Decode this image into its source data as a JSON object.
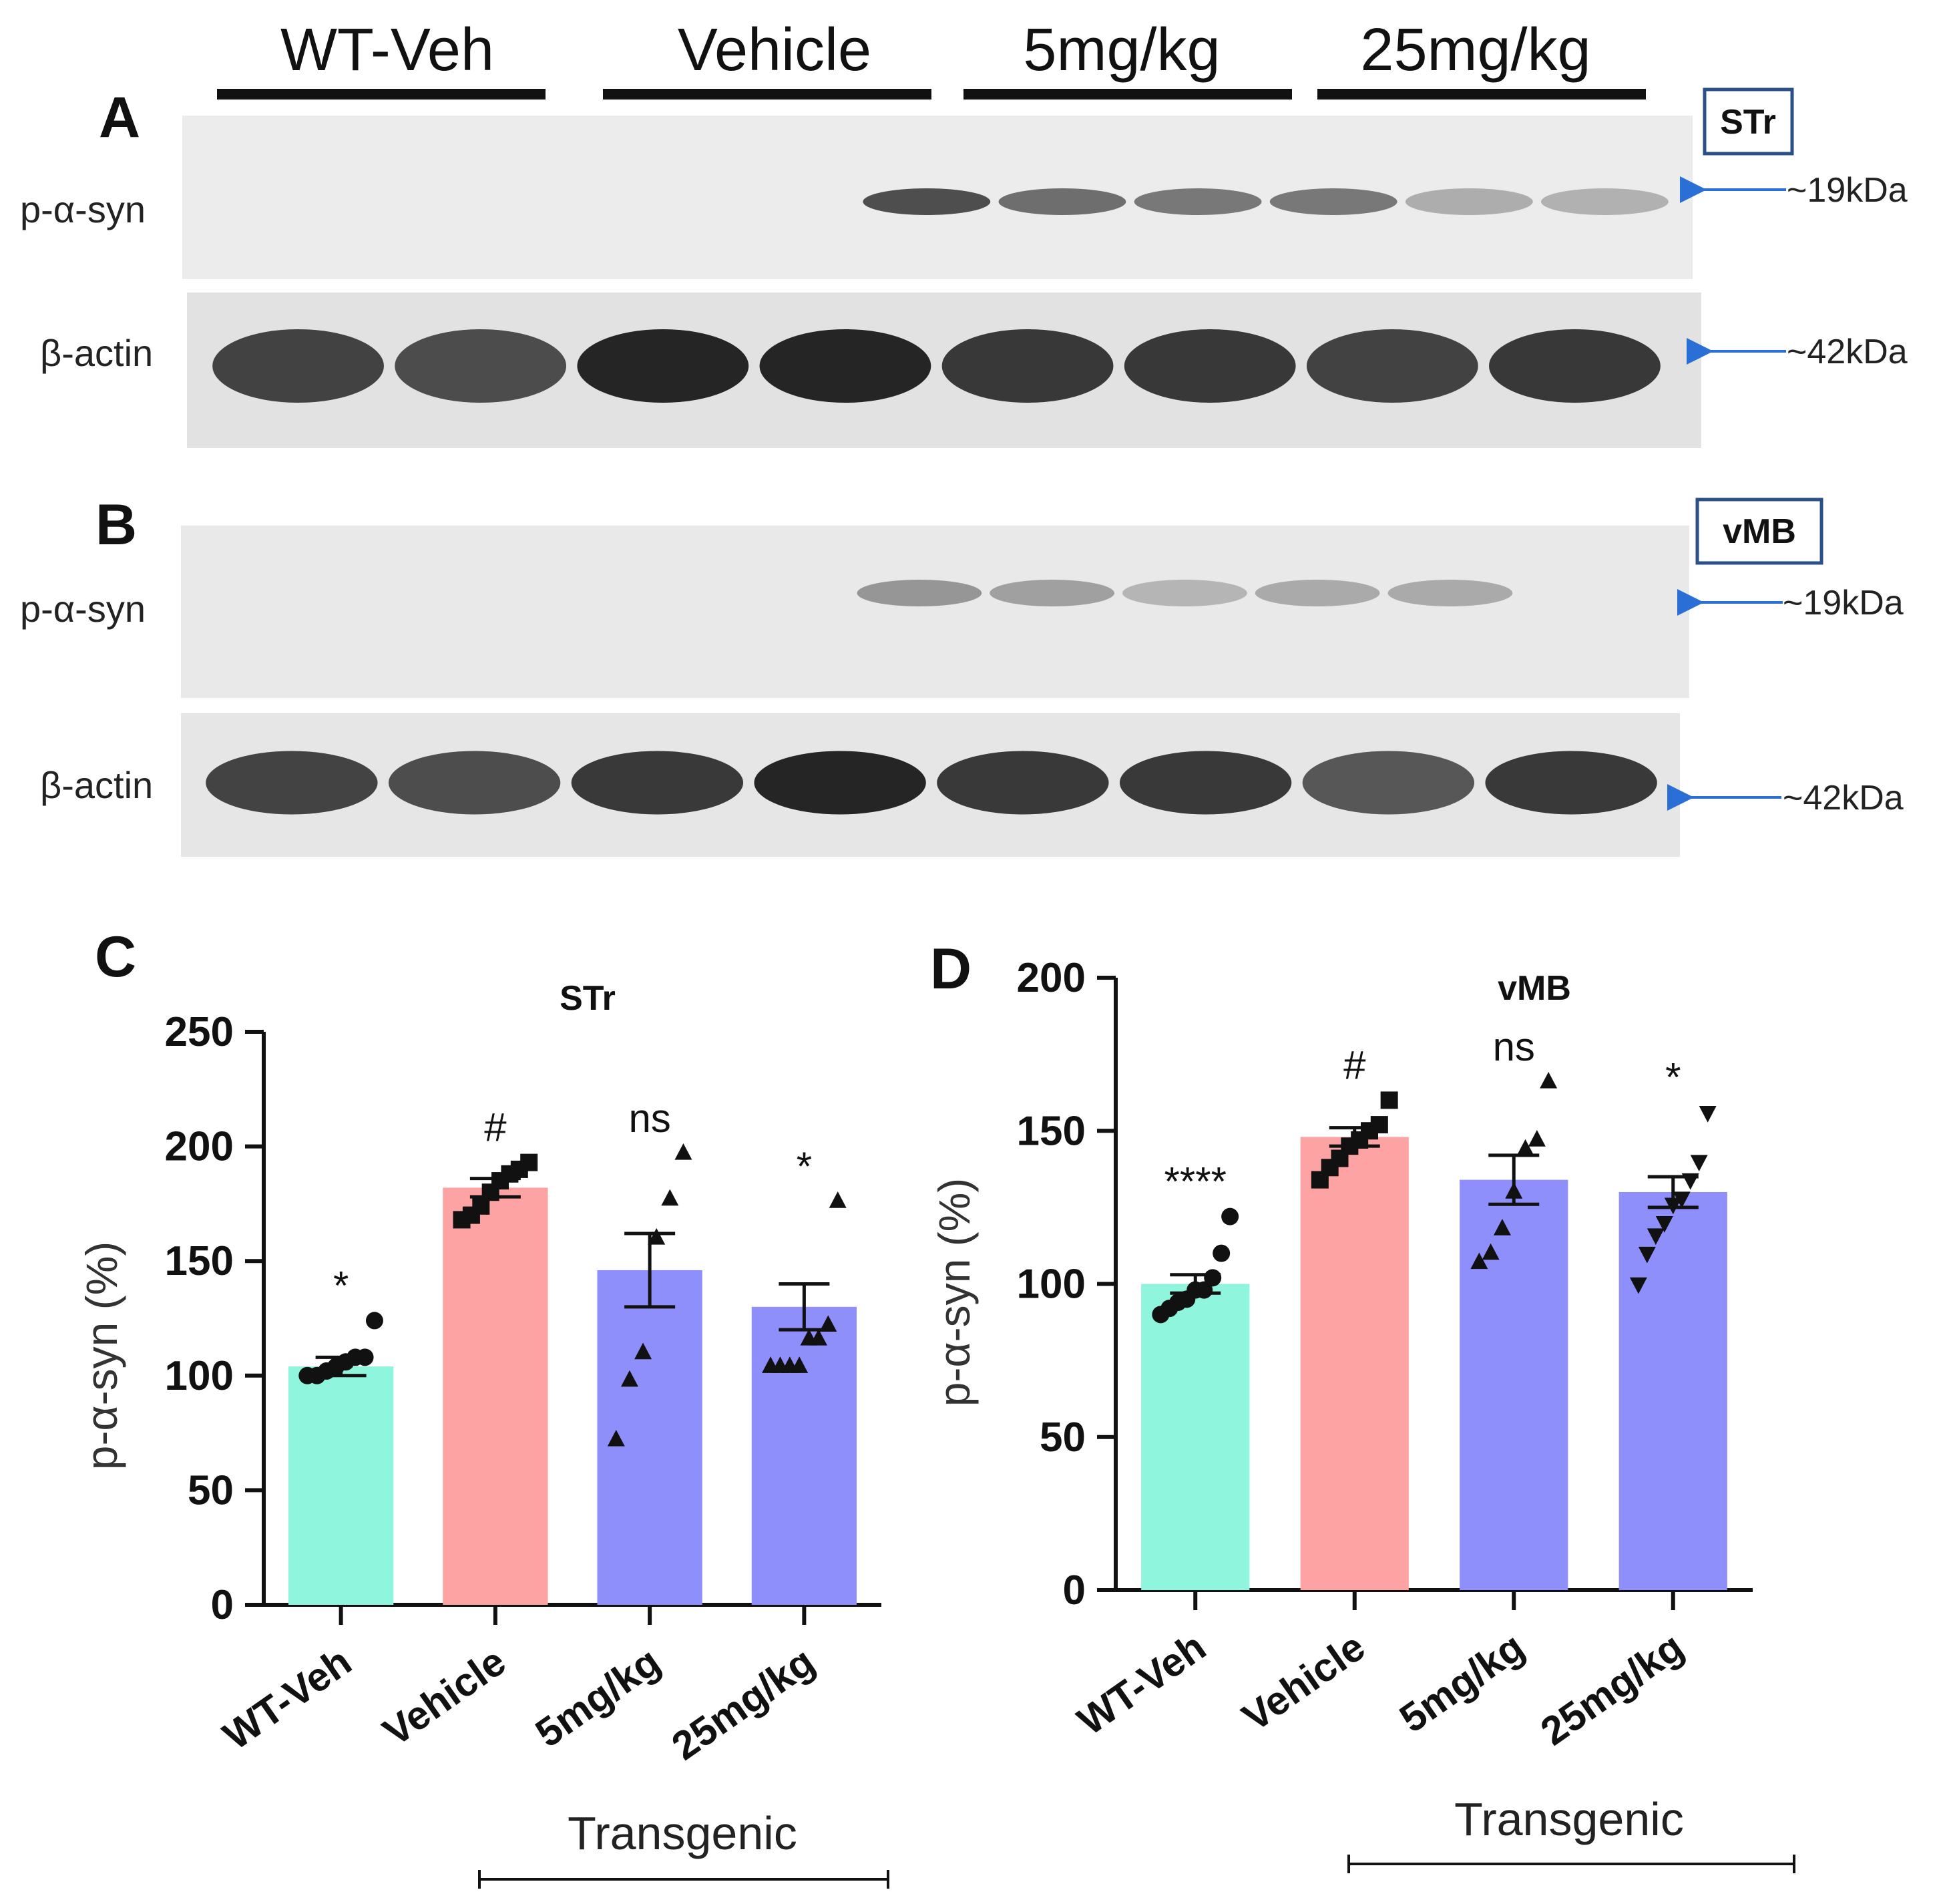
{
  "blots": {
    "header_groups": [
      "WT-Veh",
      "Vehicle",
      "5mg/kg",
      "25mg/kg"
    ],
    "panel_a": {
      "letter": "A",
      "region": "STr",
      "rows": [
        {
          "label": "p-α-syn",
          "kda": "~19kDa",
          "band_intensities": [
            0.03,
            0.04,
            0.75,
            0.6,
            0.55,
            0.55,
            0.3,
            0.28
          ]
        },
        {
          "label": "β-actin",
          "kda": "~42kDa",
          "band_intensities": [
            0.8,
            0.75,
            0.95,
            0.95,
            0.85,
            0.85,
            0.8,
            0.85
          ]
        }
      ]
    },
    "panel_b": {
      "letter": "B",
      "region": "vMB",
      "rows": [
        {
          "label": "p-α-syn",
          "kda": "~19kDa",
          "band_intensities": [
            0.05,
            0.05,
            0.4,
            0.35,
            0.25,
            0.3,
            0.3,
            0.05
          ]
        },
        {
          "label": "β-actin",
          "kda": "~42kDa",
          "band_intensities": [
            0.8,
            0.75,
            0.85,
            0.95,
            0.85,
            0.85,
            0.7,
            0.85
          ]
        }
      ]
    },
    "band_color": "#1a1a1a",
    "arrow_color": "#2a6fd6",
    "box_color": "#2b4f8a"
  },
  "chart_data": [
    {
      "panel": "C",
      "type": "bar",
      "title": "STr",
      "ylabel": "p-α-syn (%)",
      "ylim": [
        0,
        250
      ],
      "yticks": [
        0,
        50,
        100,
        150,
        200,
        250
      ],
      "categories": [
        "WT-Veh",
        "Vehicle",
        "5mg/kg",
        "25mg/kg"
      ],
      "values": [
        104,
        182,
        146,
        130
      ],
      "sem": [
        4,
        4,
        16,
        10
      ],
      "significance": [
        "*",
        "#",
        "ns",
        "*"
      ],
      "markers": [
        "circle",
        "square",
        "triangle",
        "triangle"
      ],
      "points": [
        [
          100,
          100,
          102,
          104,
          106,
          108,
          108,
          124
        ],
        [
          168,
          170,
          174,
          180,
          185,
          188,
          190,
          193
        ],
        [
          72,
          98,
          110,
          160,
          177,
          197
        ],
        [
          104,
          104,
          104,
          104,
          116,
          116,
          122,
          176
        ]
      ],
      "bar_colors": [
        "#8ff5dc",
        "#fea3a3",
        "#8f8ffb",
        "#8f8ffb"
      ],
      "group_label": "Transgenic"
    },
    {
      "panel": "D",
      "type": "bar",
      "title": "vMB",
      "ylabel": "p-α-syn (%)",
      "ylim": [
        0,
        200
      ],
      "yticks": [
        0,
        50,
        100,
        150,
        200
      ],
      "categories": [
        "WT-Veh",
        "Vehicle",
        "5mg/kg",
        "25mg/kg"
      ],
      "values": [
        100,
        148,
        134,
        130
      ],
      "sem": [
        3,
        3,
        8,
        5
      ],
      "significance": [
        "****",
        "#",
        "ns",
        "*"
      ],
      "markers": [
        "circle",
        "square",
        "triangle",
        "triangle-down"
      ],
      "points": [
        [
          90,
          92,
          94,
          95,
          98,
          98,
          102,
          110,
          122
        ],
        [
          134,
          138,
          141,
          145,
          147,
          150,
          152,
          160
        ],
        [
          107,
          110,
          118,
          130,
          144,
          147,
          166
        ],
        [
          100,
          110,
          116,
          120,
          126,
          128,
          134,
          140,
          156
        ]
      ],
      "bar_colors": [
        "#8ff5dc",
        "#fea3a3",
        "#8f8ffb",
        "#8f8ffb"
      ],
      "group_label": "Transgenic"
    }
  ]
}
